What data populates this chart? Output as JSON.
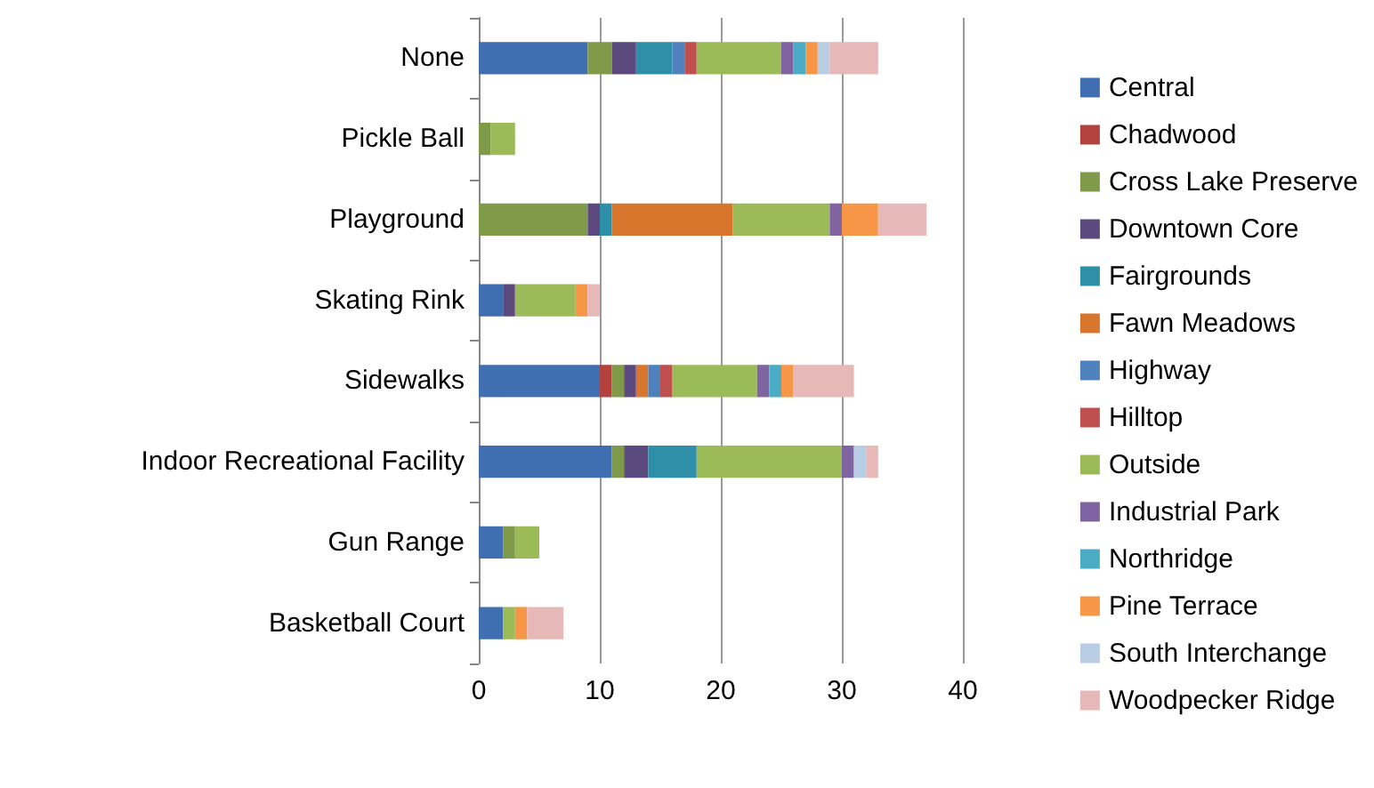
{
  "chart_data": {
    "type": "bar",
    "orientation": "horizontal",
    "stacked": true,
    "categories": [
      "None",
      "Pickle Ball",
      "Playground",
      "Skating Rink",
      "Sidewalks",
      "Indoor Recreational Facility",
      "Gun Range",
      "Basketball Court"
    ],
    "xlim": [
      0,
      40
    ],
    "xticks": [
      0,
      10,
      20,
      30,
      40
    ],
    "grid": "x",
    "legend": "right",
    "series": [
      {
        "name": "Central",
        "color": "#3f6fb0",
        "values": [
          9,
          null,
          null,
          2,
          10,
          11,
          2,
          2
        ]
      },
      {
        "name": "Chadwood",
        "color": "#b3413e",
        "values": [
          null,
          null,
          null,
          null,
          1,
          null,
          null,
          null
        ]
      },
      {
        "name": "Cross Lake Preserve",
        "color": "#7f9a48",
        "values": [
          2,
          1,
          9,
          null,
          1,
          1,
          1,
          null
        ]
      },
      {
        "name": "Downtown Core",
        "color": "#5c4a7e",
        "values": [
          2,
          null,
          1,
          1,
          1,
          2,
          null,
          null
        ]
      },
      {
        "name": "Fairgrounds",
        "color": "#2e8fa8",
        "values": [
          3,
          null,
          1,
          null,
          null,
          4,
          null,
          null
        ]
      },
      {
        "name": "Fawn Meadows",
        "color": "#d8762d",
        "values": [
          null,
          null,
          10,
          null,
          1,
          null,
          null,
          null
        ]
      },
      {
        "name": "Highway",
        "color": "#4f81bd",
        "values": [
          1,
          null,
          null,
          null,
          1,
          null,
          null,
          null
        ]
      },
      {
        "name": "Hilltop",
        "color": "#c0504d",
        "values": [
          1,
          null,
          null,
          null,
          1,
          null,
          null,
          null
        ]
      },
      {
        "name": "Outside",
        "color": "#9bbb59",
        "values": [
          7,
          2,
          8,
          5,
          7,
          12,
          2,
          1
        ]
      },
      {
        "name": "Industrial Park",
        "color": "#8064a2",
        "values": [
          1,
          null,
          1,
          null,
          1,
          1,
          null,
          null
        ]
      },
      {
        "name": "Northridge",
        "color": "#4bacc6",
        "values": [
          1,
          null,
          null,
          null,
          1,
          null,
          null,
          null
        ]
      },
      {
        "name": "Pine Terrace",
        "color": "#f79646",
        "values": [
          1,
          null,
          3,
          1,
          1,
          null,
          null,
          1
        ]
      },
      {
        "name": "South Interchange",
        "color": "#b9cde5",
        "values": [
          1,
          null,
          null,
          null,
          null,
          1,
          null,
          null
        ]
      },
      {
        "name": "Woodpecker Ridge",
        "color": "#e6b9b8",
        "values": [
          4,
          null,
          4,
          1,
          5,
          1,
          null,
          3
        ]
      }
    ]
  }
}
